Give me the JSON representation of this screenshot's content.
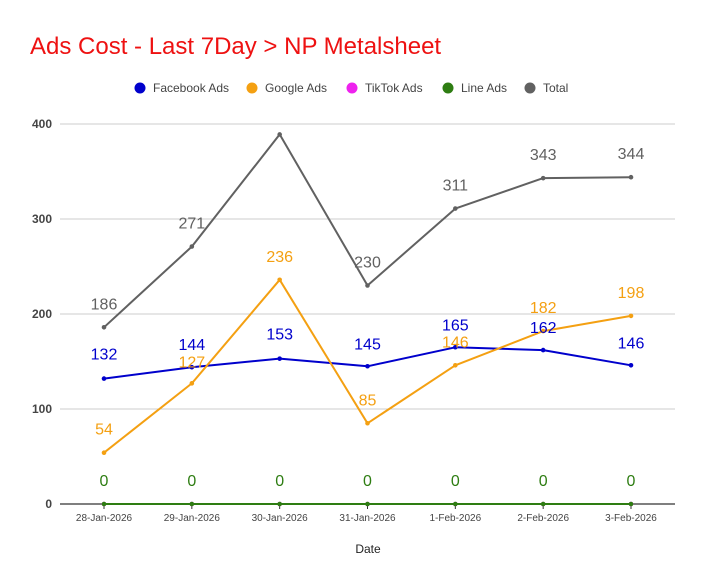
{
  "chart_data": {
    "type": "line",
    "title": "Ads Cost - Last 7Day > NP Metalsheet",
    "xlabel": "Date",
    "ylabel": "",
    "ylim": [
      0,
      400
    ],
    "yticks": [
      0,
      100,
      200,
      300,
      400
    ],
    "grid": true,
    "legend_position": "top",
    "categories": [
      "28-Jan-2026",
      "29-Jan-2026",
      "30-Jan-2026",
      "31-Jan-2026",
      "1-Feb-2026",
      "2-Feb-2026",
      "3-Feb-2026"
    ],
    "series": [
      {
        "name": "Facebook Ads",
        "color": "#0000cc",
        "values": [
          132,
          144,
          153,
          145,
          165,
          162,
          146
        ],
        "labels": [
          "132",
          "144",
          "153",
          "145",
          "165",
          "162",
          "146"
        ]
      },
      {
        "name": "Google Ads",
        "color": "#f4a012",
        "values": [
          54,
          127,
          236,
          85,
          146,
          182,
          198
        ],
        "labels": [
          "54",
          "127",
          "236",
          "85",
          "146",
          "182",
          "198"
        ]
      },
      {
        "name": "TikTok Ads",
        "color": "#ee22ee",
        "values": [
          0,
          0,
          0,
          0,
          0,
          0,
          0
        ],
        "labels": []
      },
      {
        "name": "Line Ads",
        "color": "#2e7d12",
        "values": [
          0,
          0,
          0,
          0,
          0,
          0,
          0
        ],
        "labels": [
          "0",
          "0",
          "0",
          "0",
          "0",
          "0",
          "0"
        ]
      },
      {
        "name": "Total",
        "color": "#616161",
        "values": [
          186,
          271,
          389,
          230,
          311,
          343,
          344
        ],
        "labels": [
          "186",
          "271",
          "",
          "230",
          "311",
          "343",
          "344"
        ]
      }
    ]
  }
}
